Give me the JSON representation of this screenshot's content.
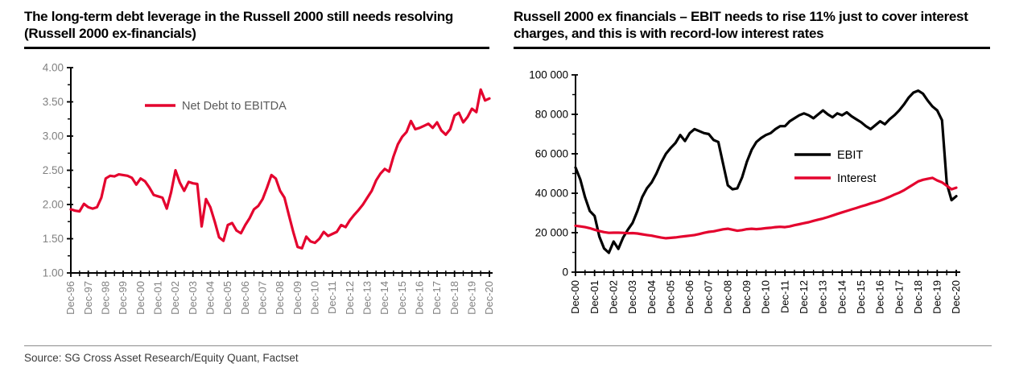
{
  "footer": {
    "source_note": "Source: SG Cross Asset Research/Equity Quant, Factset"
  },
  "chart_data": [
    {
      "type": "line",
      "title": "The long-term debt leverage in the Russell 2000 still needs resolving (Russell 2000 ex-financials)",
      "xlabel": "",
      "ylabel": "",
      "ylim": [
        1.0,
        4.0
      ],
      "y_tick_labels": [
        "4.00",
        "3.50",
        "3.00",
        "2.50",
        "2.00",
        "1.50",
        "1.00"
      ],
      "y_minor_step": 0.25,
      "grid": false,
      "legend_position": "inside-top-center",
      "axis_color": "#000000",
      "tick_label_color": "#808080",
      "legend_text_color": "#595959",
      "x_frequency": "quarterly",
      "x_tick_labels": [
        "Dec-96",
        "Dec-97",
        "Dec-98",
        "Dec-99",
        "Dec-00",
        "Dec-01",
        "Dec-02",
        "Dec-03",
        "Dec-04",
        "Dec-05",
        "Dec-06",
        "Dec-07",
        "Dec-08",
        "Dec-09",
        "Dec-10",
        "Dec-11",
        "Dec-12",
        "Dec-13",
        "Dec-14",
        "Dec-15",
        "Dec-16",
        "Dec-17",
        "Dec-18",
        "Dec-19",
        "Dec-20"
      ],
      "series": [
        {
          "name": "Net Debt to EBITDA",
          "color": "#e4032e",
          "values": [
            1.93,
            1.91,
            1.9,
            2.01,
            1.96,
            1.94,
            1.96,
            2.1,
            2.38,
            2.42,
            2.41,
            2.44,
            2.43,
            2.42,
            2.39,
            2.29,
            2.38,
            2.34,
            2.25,
            2.14,
            2.12,
            2.1,
            1.94,
            2.18,
            2.5,
            2.32,
            2.2,
            2.33,
            2.31,
            2.3,
            1.68,
            2.08,
            1.96,
            1.75,
            1.52,
            1.47,
            1.7,
            1.73,
            1.62,
            1.58,
            1.7,
            1.8,
            1.93,
            1.98,
            2.08,
            2.25,
            2.43,
            2.38,
            2.2,
            2.1,
            1.85,
            1.6,
            1.38,
            1.36,
            1.53,
            1.46,
            1.44,
            1.5,
            1.6,
            1.54,
            1.57,
            1.6,
            1.7,
            1.67,
            1.77,
            1.85,
            1.92,
            2.0,
            2.1,
            2.2,
            2.35,
            2.45,
            2.52,
            2.48,
            2.7,
            2.88,
            2.99,
            3.06,
            3.22,
            3.1,
            3.12,
            3.15,
            3.18,
            3.12,
            3.2,
            3.08,
            3.02,
            3.1,
            3.3,
            3.34,
            3.2,
            3.28,
            3.4,
            3.35,
            3.68,
            3.52,
            3.55
          ]
        }
      ]
    },
    {
      "type": "line",
      "title": "Russell 2000 ex financials – EBIT needs to rise 11% just to cover interest charges, and this is with record-low interest rates",
      "xlabel": "",
      "ylabel": "",
      "ylim": [
        0,
        100000
      ],
      "y_tick_labels": [
        "100 000",
        "80 000",
        "60 000",
        "40 000",
        "20 000",
        "0"
      ],
      "y_minor_step": 10000,
      "grid": false,
      "legend_position": "inside-right-middle",
      "axis_color": "#000000",
      "tick_label_color": "#000000",
      "legend_text_color": "#000000",
      "x_frequency": "quarterly",
      "x_tick_labels": [
        "Dec-00",
        "Dec-01",
        "Dec-02",
        "Dec-03",
        "Dec-04",
        "Dec-05",
        "Dec-06",
        "Dec-07",
        "Dec-08",
        "Dec-09",
        "Dec-10",
        "Dec-11",
        "Dec-12",
        "Dec-13",
        "Dec-14",
        "Dec-15",
        "Dec-16",
        "Dec-17",
        "Dec-18",
        "Dec-19",
        "Dec-20"
      ],
      "series": [
        {
          "name": "EBIT",
          "color": "#000000",
          "values": [
            53000,
            47000,
            38000,
            31000,
            28500,
            18000,
            12000,
            9800,
            15500,
            11800,
            17500,
            21500,
            25000,
            31000,
            38000,
            42500,
            45500,
            50000,
            55500,
            60000,
            63000,
            65500,
            69500,
            66500,
            70500,
            72500,
            71500,
            70500,
            70000,
            67000,
            66000,
            55000,
            44000,
            42000,
            42500,
            48000,
            56000,
            62000,
            66000,
            68000,
            69500,
            70500,
            72500,
            74000,
            74000,
            76500,
            78000,
            79500,
            80500,
            79500,
            78000,
            80000,
            82000,
            80000,
            78500,
            80500,
            79500,
            81000,
            79000,
            77500,
            76000,
            74000,
            72500,
            74500,
            76500,
            75000,
            77500,
            79500,
            82000,
            85000,
            88500,
            91000,
            92000,
            90500,
            87000,
            84000,
            82000,
            77000,
            45000,
            36500,
            38500
          ]
        },
        {
          "name": "Interest",
          "color": "#e4032e",
          "values": [
            23500,
            23200,
            22800,
            22300,
            21500,
            20800,
            20300,
            19900,
            20000,
            20000,
            19900,
            19700,
            19800,
            19600,
            19200,
            18800,
            18500,
            18000,
            17500,
            17200,
            17400,
            17600,
            17900,
            18200,
            18500,
            18800,
            19300,
            19900,
            20400,
            20700,
            21200,
            21700,
            22000,
            21500,
            21000,
            21300,
            21800,
            22000,
            21800,
            22000,
            22300,
            22500,
            22800,
            23000,
            22800,
            23200,
            23800,
            24300,
            24800,
            25300,
            26000,
            26600,
            27200,
            27900,
            28700,
            29500,
            30300,
            31000,
            31800,
            32500,
            33300,
            34000,
            34800,
            35500,
            36300,
            37200,
            38200,
            39300,
            40300,
            41500,
            43000,
            44500,
            46000,
            46800,
            47300,
            47800,
            46500,
            45500,
            43800,
            42000,
            42800
          ]
        }
      ]
    }
  ]
}
